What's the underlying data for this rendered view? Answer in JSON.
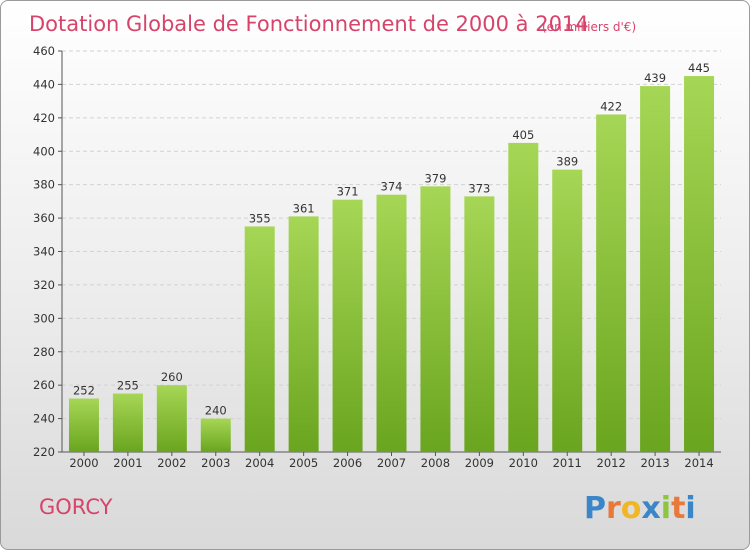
{
  "chart_data": {
    "type": "bar",
    "title": "Dotation Globale de Fonctionnement de 2000 à 2014",
    "subtitle": "(en milliers d'€)",
    "xlabel": "",
    "ylabel": "",
    "categories": [
      "2000",
      "2001",
      "2002",
      "2003",
      "2004",
      "2005",
      "2006",
      "2007",
      "2008",
      "2009",
      "2010",
      "2011",
      "2012",
      "2013",
      "2014"
    ],
    "values": [
      252,
      255,
      260,
      240,
      355,
      361,
      371,
      374,
      379,
      373,
      405,
      389,
      422,
      439,
      445
    ],
    "ylim": [
      220,
      460
    ],
    "yticks": [
      220,
      240,
      260,
      280,
      300,
      320,
      340,
      360,
      380,
      400,
      420,
      440,
      460
    ],
    "grid": true,
    "colors": {
      "bar_light": "#a6d655",
      "bar_dark": "#6aa51f",
      "title": "#d8436a"
    }
  },
  "commune": "GORCY",
  "logo": {
    "letters": [
      "P",
      "r",
      "o",
      "x",
      "i",
      "t",
      "i"
    ],
    "colors": [
      "#3a86c8",
      "#e8793a",
      "#f1b623",
      "#3a86c8",
      "#8cc63f",
      "#e8793a",
      "#3a86c8"
    ]
  }
}
